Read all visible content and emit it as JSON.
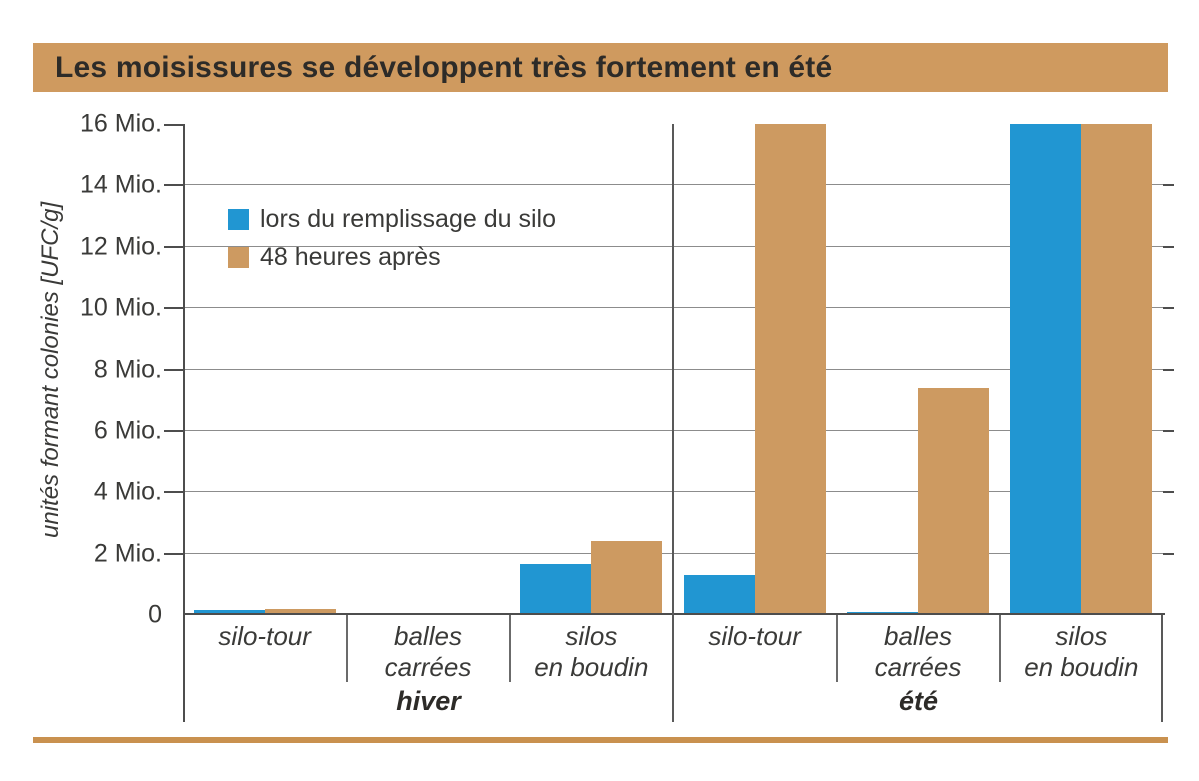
{
  "title": "Les moisissures se développent très fortement en été",
  "colors": {
    "bar_blue": "#2196d2",
    "bar_tan": "#cd9a61",
    "banner": "#cf9a5f",
    "rule": "#c9914f"
  },
  "y_axis": {
    "label": "unités formant colonies [UFC/g]",
    "tick_labels": [
      "16 Mio.",
      "14 Mio.",
      "12 Mio.",
      "10 Mio.",
      "8 Mio.",
      "6 Mio.",
      "4 Mio.",
      "2 Mio.",
      "0"
    ]
  },
  "legend": {
    "items": [
      {
        "label": "lors du remplissage du silo",
        "color": "#2196d2"
      },
      {
        "label": "48 heures après",
        "color": "#cd9a61"
      }
    ]
  },
  "chart_data": {
    "type": "bar",
    "title": "Les moisissures se développent très fortement en été",
    "ylabel": "unités formant colonies [UFC/g]",
    "ylim": [
      0,
      16
    ],
    "ytick_step": 2,
    "ytick_unit": "Mio.",
    "grid": true,
    "legend_position": "top-left-inside",
    "series_names": [
      "lors du remplissage du silo",
      "48 heures après"
    ],
    "groups": [
      {
        "label": "hiver",
        "categories": [
          "silo-tour",
          "balles\ncarrées",
          "silos\nen boudin"
        ],
        "series": [
          {
            "name": "lors du remplissage du silo",
            "values": [
              0.15,
              0,
              1.65
            ]
          },
          {
            "name": "48 heures après",
            "values": [
              0.2,
              0,
              2.4
            ]
          }
        ]
      },
      {
        "label": "été",
        "categories": [
          "silo-tour",
          "balles\ncarrées",
          "silos\nen boudin"
        ],
        "series": [
          {
            "name": "lors du remplissage du silo",
            "values": [
              1.3,
              0.1,
              16
            ]
          },
          {
            "name": "48 heures après",
            "values": [
              16,
              7.4,
              16
            ]
          }
        ]
      }
    ]
  }
}
